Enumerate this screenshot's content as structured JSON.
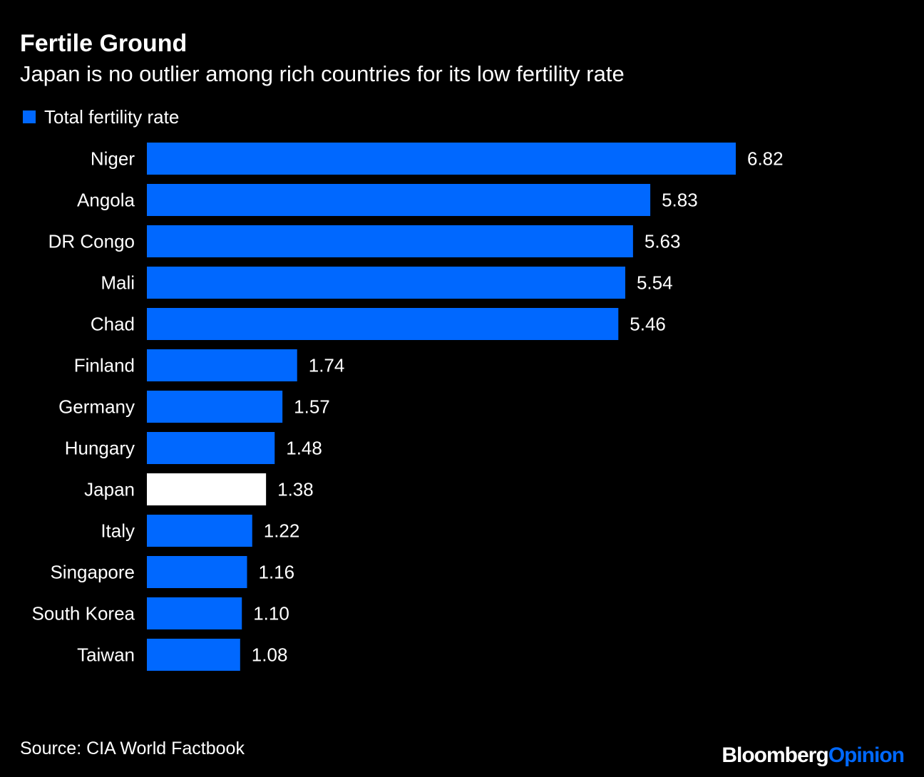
{
  "colors": {
    "background": "#000000",
    "bar": "#0068ff",
    "highlight": "#ffffff",
    "text": "#ffffff"
  },
  "brand": {
    "part1": "Bloomberg",
    "part2": "Opinion"
  },
  "chart_data": {
    "type": "bar",
    "orientation": "horizontal",
    "title": "Fertile Ground",
    "subtitle": "Japan is no outlier among rich countries for its low fertility rate",
    "legend": [
      "Total fertility rate"
    ],
    "legend_position": "top-left",
    "categories": [
      "Niger",
      "Angola",
      "DR Congo",
      "Mali",
      "Chad",
      "Finland",
      "Germany",
      "Hungary",
      "Japan",
      "Italy",
      "Singapore",
      "South Korea",
      "Taiwan"
    ],
    "series": [
      {
        "name": "Total fertility rate",
        "values": [
          6.82,
          5.83,
          5.63,
          5.54,
          5.46,
          1.74,
          1.57,
          1.48,
          1.38,
          1.22,
          1.16,
          1.1,
          1.08
        ],
        "value_labels": [
          "6.82",
          "5.83",
          "5.63",
          "5.54",
          "5.46",
          "1.74",
          "1.57",
          "1.48",
          "1.38",
          "1.22",
          "1.16",
          "1.10",
          "1.08"
        ]
      }
    ],
    "highlighted_category": "Japan",
    "xlim": [
      0,
      6.82
    ],
    "grid": false,
    "source": "Source: CIA World Factbook"
  }
}
